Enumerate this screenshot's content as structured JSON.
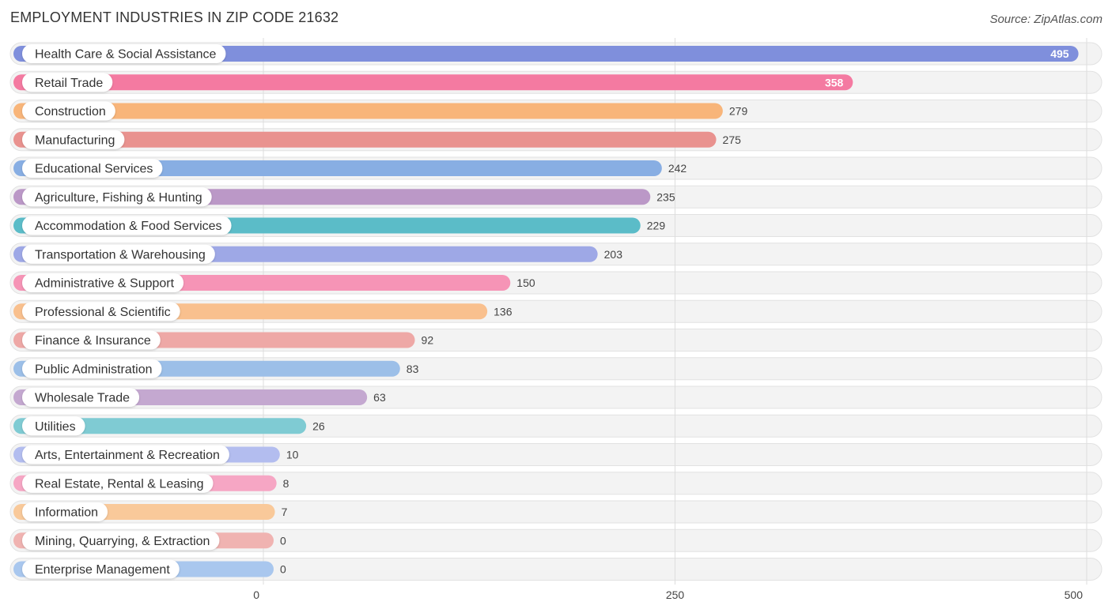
{
  "header": {
    "title": "EMPLOYMENT INDUSTRIES IN ZIP CODE 21632",
    "source": "Source: ZipAtlas.com"
  },
  "chart_data": {
    "type": "bar",
    "orientation": "horizontal",
    "title": "EMPLOYMENT INDUSTRIES IN ZIP CODE 21632",
    "xlabel": "",
    "ylabel": "",
    "xlim": [
      0,
      500
    ],
    "ticks": [
      0,
      250,
      500
    ],
    "grid": true,
    "categories": [
      "Health Care & Social Assistance",
      "Retail Trade",
      "Construction",
      "Manufacturing",
      "Educational Services",
      "Agriculture, Fishing & Hunting",
      "Accommodation & Food Services",
      "Transportation & Warehousing",
      "Administrative & Support",
      "Professional & Scientific",
      "Finance & Insurance",
      "Public Administration",
      "Wholesale Trade",
      "Utilities",
      "Arts, Entertainment & Recreation",
      "Real Estate, Rental & Leasing",
      "Information",
      "Mining, Quarrying, & Extraction",
      "Enterprise Management"
    ],
    "values": [
      495,
      358,
      279,
      275,
      242,
      235,
      229,
      203,
      150,
      136,
      92,
      83,
      63,
      26,
      10,
      8,
      7,
      0,
      0
    ],
    "colors": [
      "#7f8fdc",
      "#f47aa1",
      "#f8b57a",
      "#e9928f",
      "#88aee3",
      "#bb98c7",
      "#5bbcc8",
      "#9ea8e6",
      "#f694b6",
      "#f9c08e",
      "#eea8a6",
      "#9cbfe8",
      "#c4a8d0",
      "#7fcbd3",
      "#b3bdef",
      "#f6a6c4",
      "#f9c99a",
      "#f0b3b1",
      "#a9c7ee"
    ]
  }
}
